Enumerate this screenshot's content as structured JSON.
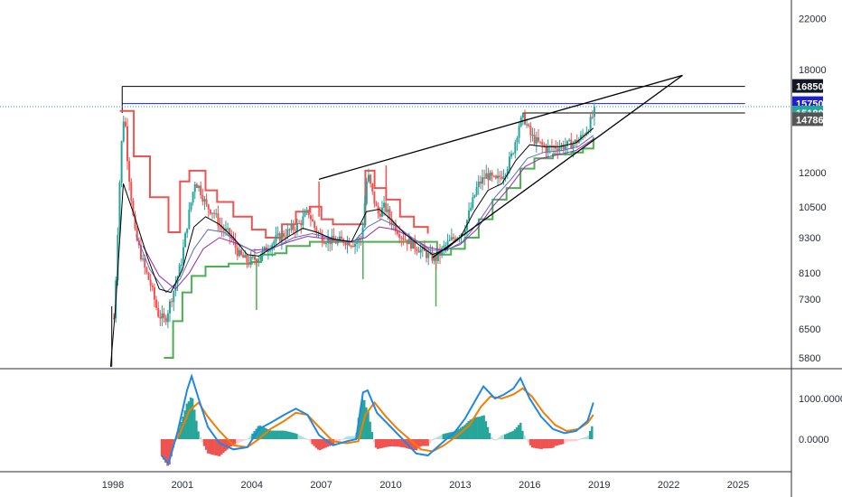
{
  "colors": {
    "candle_up": "#26a69a",
    "candle_down": "#ef5350",
    "ema_fast": "#000000",
    "ema_slow": "#9c27b0",
    "ema_mid": "#5c6bc0",
    "stop_upper": "#ef5350",
    "stop_lower": "#4caf50",
    "trend_line": "#000000",
    "level_black": "#000000",
    "level_blue": "#1f1fd1",
    "last_price_line": "#26a69a",
    "macd_line": "#1e88e5",
    "signal_line": "#f57c00",
    "hist_pos_strong": "#26a69a",
    "hist_pos_weak": "#b2dfdb",
    "hist_neg_strong": "#ef5350",
    "hist_neg_weak": "#ffcdd2"
  },
  "chart_data": [
    {
      "type": "candlestick",
      "title": "",
      "scale": "log",
      "y_ticks": [
        22000,
        18000,
        12000,
        10500,
        9300,
        8100,
        7300,
        6500,
        5800
      ],
      "x_ticks": [
        "1998",
        "2001",
        "2004",
        "2007",
        "2010",
        "2013",
        "2016",
        "2019",
        "2022",
        "2025"
      ],
      "price_labels": [
        {
          "label": "16850",
          "value": 16850,
          "bg": "#131722"
        },
        {
          "label": "15750",
          "value": 15750,
          "bg": "#1f1fd1"
        },
        {
          "label": "15180",
          "value": 15180,
          "bg": "#26a69a"
        },
        {
          "label": "14786",
          "value": 14786,
          "bg": "#555555"
        }
      ],
      "horizontal_levels": [
        {
          "value": 16850,
          "from": 1998.4,
          "to": 2025.3,
          "color": "level_black"
        },
        {
          "value": 15750,
          "from": 1998.4,
          "to": 2025.3,
          "color": "level_blue"
        },
        {
          "value": 15180,
          "from": 2015.7,
          "to": 2025.3,
          "color": "level_black"
        }
      ],
      "trend_lines": [
        {
          "from": [
            2006.9,
            11700
          ],
          "to": [
            2022.6,
            17600
          ]
        },
        {
          "from": [
            2011.8,
            8600
          ],
          "to": [
            2022.6,
            17600
          ]
        }
      ],
      "price_path": [
        [
          1997.9,
          5600
        ],
        [
          1998.1,
          8200
        ],
        [
          1998.3,
          13000
        ],
        [
          1998.45,
          15400
        ],
        [
          1998.6,
          12500
        ],
        [
          1998.9,
          9500
        ],
        [
          1999.3,
          8300
        ],
        [
          1999.6,
          7700
        ],
        [
          1999.9,
          6900
        ],
        [
          2000.2,
          6700
        ],
        [
          2000.6,
          7600
        ],
        [
          2000.9,
          8400
        ],
        [
          2001.2,
          10000
        ],
        [
          2001.5,
          11600
        ],
        [
          2001.7,
          11300
        ],
        [
          2002.0,
          10500
        ],
        [
          2002.3,
          10300
        ],
        [
          2002.6,
          9700
        ],
        [
          2003.0,
          9400
        ],
        [
          2003.4,
          8700
        ],
        [
          2003.8,
          8450
        ],
        [
          2004.2,
          8600
        ],
        [
          2004.6,
          8900
        ],
        [
          2005.0,
          9250
        ],
        [
          2005.5,
          9500
        ],
        [
          2006.0,
          9800
        ],
        [
          2006.4,
          10300
        ],
        [
          2006.7,
          9600
        ],
        [
          2007.0,
          9300
        ],
        [
          2007.5,
          9150
        ],
        [
          2008.0,
          9200
        ],
        [
          2008.4,
          9100
        ],
        [
          2008.7,
          9300
        ],
        [
          2008.95,
          12000
        ],
        [
          2009.2,
          10900
        ],
        [
          2009.4,
          10200
        ],
        [
          2009.7,
          10500
        ],
        [
          2010.0,
          9900
        ],
        [
          2010.4,
          9400
        ],
        [
          2010.8,
          9100
        ],
        [
          2011.2,
          8900
        ],
        [
          2011.6,
          8650
        ],
        [
          2011.9,
          8550
        ],
        [
          2012.3,
          9000
        ],
        [
          2012.7,
          9300
        ],
        [
          2013.1,
          9550
        ],
        [
          2013.4,
          10400
        ],
        [
          2013.7,
          11400
        ],
        [
          2014.1,
          11900
        ],
        [
          2014.5,
          11600
        ],
        [
          2014.9,
          12100
        ],
        [
          2015.2,
          12900
        ],
        [
          2015.5,
          14500
        ],
        [
          2015.7,
          14950
        ],
        [
          2016.0,
          13900
        ],
        [
          2016.3,
          13500
        ],
        [
          2016.7,
          13200
        ],
        [
          2017.1,
          13300
        ],
        [
          2017.5,
          13350
        ],
        [
          2017.9,
          13500
        ],
        [
          2018.2,
          13800
        ],
        [
          2018.5,
          14400
        ],
        [
          2018.75,
          15250
        ]
      ],
      "ema_fast_path": [
        [
          1997.9,
          5600
        ],
        [
          1998.1,
          7000
        ],
        [
          1998.45,
          11500
        ],
        [
          1998.9,
          10200
        ],
        [
          1999.5,
          8600
        ],
        [
          2000.0,
          7600
        ],
        [
          2000.5,
          7500
        ],
        [
          2001.0,
          8200
        ],
        [
          2001.5,
          9700
        ],
        [
          2002.0,
          10100
        ],
        [
          2002.6,
          9800
        ],
        [
          2003.2,
          9300
        ],
        [
          2003.8,
          8700
        ],
        [
          2004.3,
          8650
        ],
        [
          2005.0,
          9000
        ],
        [
          2005.6,
          9350
        ],
        [
          2006.2,
          9650
        ],
        [
          2006.8,
          9500
        ],
        [
          2007.5,
          9250
        ],
        [
          2008.3,
          9150
        ],
        [
          2008.95,
          10300
        ],
        [
          2009.5,
          10400
        ],
        [
          2010.0,
          10000
        ],
        [
          2010.6,
          9450
        ],
        [
          2011.2,
          9050
        ],
        [
          2011.8,
          8700
        ],
        [
          2012.4,
          8900
        ],
        [
          2013.0,
          9300
        ],
        [
          2013.6,
          10300
        ],
        [
          2014.2,
          11200
        ],
        [
          2014.8,
          11500
        ],
        [
          2015.4,
          12600
        ],
        [
          2016.0,
          13400
        ],
        [
          2016.6,
          13300
        ],
        [
          2017.3,
          13300
        ],
        [
          2018.0,
          13500
        ],
        [
          2018.75,
          14300
        ]
      ],
      "ema_mid_path": [
        [
          1999.0,
          9400
        ],
        [
          1999.6,
          8200
        ],
        [
          2000.3,
          7500
        ],
        [
          2000.9,
          7900
        ],
        [
          2001.5,
          8900
        ],
        [
          2002.1,
          9600
        ],
        [
          2002.8,
          9500
        ],
        [
          2003.5,
          9050
        ],
        [
          2004.2,
          8750
        ],
        [
          2005.0,
          8950
        ],
        [
          2005.8,
          9300
        ],
        [
          2006.6,
          9450
        ],
        [
          2007.5,
          9250
        ],
        [
          2008.4,
          9150
        ],
        [
          2009.0,
          9700
        ],
        [
          2009.6,
          10000
        ],
        [
          2010.3,
          9700
        ],
        [
          2011.0,
          9250
        ],
        [
          2011.7,
          8850
        ],
        [
          2012.4,
          8850
        ],
        [
          2013.1,
          9150
        ],
        [
          2013.8,
          9900
        ],
        [
          2014.5,
          10900
        ],
        [
          2015.2,
          11700
        ],
        [
          2015.9,
          12700
        ],
        [
          2016.6,
          13000
        ],
        [
          2017.4,
          13100
        ],
        [
          2018.1,
          13300
        ],
        [
          2018.75,
          13900
        ]
      ],
      "ema_slow_path": [
        [
          1999.3,
          9000
        ],
        [
          2000.0,
          8000
        ],
        [
          2000.7,
          7600
        ],
        [
          2001.3,
          8100
        ],
        [
          2001.9,
          8900
        ],
        [
          2002.6,
          9300
        ],
        [
          2003.3,
          9100
        ],
        [
          2004.0,
          8850
        ],
        [
          2004.8,
          8900
        ],
        [
          2005.6,
          9150
        ],
        [
          2006.4,
          9350
        ],
        [
          2007.3,
          9250
        ],
        [
          2008.2,
          9150
        ],
        [
          2008.9,
          9300
        ],
        [
          2009.5,
          9700
        ],
        [
          2010.2,
          9600
        ],
        [
          2010.9,
          9300
        ],
        [
          2011.6,
          8950
        ],
        [
          2012.3,
          8850
        ],
        [
          2013.0,
          9050
        ],
        [
          2013.7,
          9600
        ],
        [
          2014.4,
          10500
        ],
        [
          2015.1,
          11300
        ],
        [
          2015.8,
          12300
        ],
        [
          2016.5,
          12700
        ],
        [
          2017.3,
          12900
        ],
        [
          2018.0,
          13100
        ],
        [
          2018.75,
          13700
        ]
      ],
      "stop_upper_steps": [
        [
          1998.3,
          15300
        ],
        [
          1998.9,
          12800
        ],
        [
          1999.6,
          10900
        ],
        [
          2000.4,
          9500
        ],
        [
          2000.9,
          11600
        ],
        [
          2001.3,
          12100
        ],
        [
          2002.0,
          11200
        ],
        [
          2002.5,
          10700
        ],
        [
          2003.2,
          10100
        ],
        [
          2004.0,
          9600
        ],
        [
          2004.6,
          9300
        ],
        [
          2005.3,
          9800
        ],
        [
          2005.9,
          10300
        ],
        [
          2006.5,
          10500
        ],
        [
          2007.0,
          10000
        ],
        [
          2007.5,
          9800
        ],
        [
          2008.9,
          12100
        ],
        [
          2009.3,
          11300
        ],
        [
          2009.8,
          10800
        ],
        [
          2010.4,
          10100
        ],
        [
          2011.0,
          9700
        ],
        [
          2011.6,
          9450
        ]
      ],
      "stop_lower_steps": [
        [
          2000.2,
          5800
        ],
        [
          2000.6,
          6700
        ],
        [
          2001.0,
          7500
        ],
        [
          2001.4,
          8000
        ],
        [
          2002.0,
          8300
        ],
        [
          2003.0,
          8400
        ],
        [
          2004.0,
          8450
        ],
        [
          2004.4,
          8700
        ],
        [
          2005.0,
          8750
        ],
        [
          2005.5,
          9000
        ],
        [
          2006.0,
          9000
        ],
        [
          2006.5,
          9150
        ],
        [
          2008.0,
          9150
        ],
        [
          2009.0,
          9150
        ],
        [
          2010.0,
          9150
        ],
        [
          2011.0,
          9150
        ],
        [
          2012.0,
          8700
        ],
        [
          2012.6,
          8900
        ],
        [
          2013.2,
          9300
        ],
        [
          2013.8,
          10000
        ],
        [
          2014.4,
          10800
        ],
        [
          2015.0,
          11300
        ],
        [
          2015.6,
          12200
        ],
        [
          2016.2,
          12700
        ],
        [
          2017.0,
          12900
        ],
        [
          2017.8,
          13000
        ],
        [
          2018.3,
          13200
        ],
        [
          2018.75,
          13800
        ]
      ],
      "stop_spikes": [
        {
          "x": 2004.2,
          "low": 7000,
          "color": "stop_lower"
        },
        {
          "x": 2008.8,
          "low": 7900,
          "color": "stop_lower"
        },
        {
          "x": 2011.95,
          "low": 7100,
          "color": "stop_lower"
        },
        {
          "x": 2006.9,
          "high": 11600,
          "color": "stop_upper"
        },
        {
          "x": 2009.8,
          "high": 12350,
          "color": "stop_upper"
        }
      ]
    },
    {
      "type": "macd",
      "y_ticks": [
        {
          "label": "1000.0000",
          "value": 1000
        },
        {
          "label": "0.0000",
          "value": 0
        }
      ],
      "macd_path": [
        [
          2000.1,
          -400
        ],
        [
          2000.4,
          -600
        ],
        [
          2000.8,
          200
        ],
        [
          2001.2,
          1200
        ],
        [
          2001.4,
          1550
        ],
        [
          2001.7,
          1000
        ],
        [
          2002.1,
          300
        ],
        [
          2002.6,
          -100
        ],
        [
          2003.2,
          -250
        ],
        [
          2003.8,
          -200
        ],
        [
          2004.3,
          250
        ],
        [
          2004.8,
          400
        ],
        [
          2005.4,
          600
        ],
        [
          2005.9,
          750
        ],
        [
          2006.4,
          600
        ],
        [
          2006.9,
          100
        ],
        [
          2007.5,
          -150
        ],
        [
          2008.1,
          -50
        ],
        [
          2008.5,
          0
        ],
        [
          2008.8,
          1150
        ],
        [
          2009.0,
          1200
        ],
        [
          2009.4,
          650
        ],
        [
          2010.0,
          300
        ],
        [
          2010.6,
          -50
        ],
        [
          2011.1,
          -350
        ],
        [
          2011.6,
          -400
        ],
        [
          2012.2,
          -100
        ],
        [
          2012.8,
          200
        ],
        [
          2013.2,
          500
        ],
        [
          2013.7,
          1000
        ],
        [
          2014.0,
          1300
        ],
        [
          2014.5,
          1000
        ],
        [
          2014.9,
          1100
        ],
        [
          2015.3,
          1250
        ],
        [
          2015.6,
          1500
        ],
        [
          2016.0,
          1000
        ],
        [
          2016.5,
          550
        ],
        [
          2017.0,
          250
        ],
        [
          2017.5,
          150
        ],
        [
          2018.0,
          200
        ],
        [
          2018.5,
          450
        ],
        [
          2018.75,
          900
        ]
      ],
      "signal_path": [
        [
          2000.6,
          -100
        ],
        [
          2000.9,
          150
        ],
        [
          2001.3,
          700
        ],
        [
          2001.7,
          900
        ],
        [
          2002.1,
          550
        ],
        [
          2002.6,
          200
        ],
        [
          2003.2,
          -150
        ],
        [
          2003.8,
          -200
        ],
        [
          2004.3,
          0
        ],
        [
          2004.8,
          250
        ],
        [
          2005.4,
          450
        ],
        [
          2005.9,
          650
        ],
        [
          2006.4,
          600
        ],
        [
          2006.9,
          300
        ],
        [
          2007.5,
          -50
        ],
        [
          2008.1,
          -100
        ],
        [
          2008.6,
          -50
        ],
        [
          2008.9,
          600
        ],
        [
          2009.3,
          900
        ],
        [
          2009.8,
          550
        ],
        [
          2010.3,
          250
        ],
        [
          2010.8,
          0
        ],
        [
          2011.3,
          -250
        ],
        [
          2011.8,
          -300
        ],
        [
          2012.3,
          -150
        ],
        [
          2012.9,
          100
        ],
        [
          2013.4,
          350
        ],
        [
          2013.9,
          800
        ],
        [
          2014.3,
          1050
        ],
        [
          2014.8,
          1000
        ],
        [
          2015.3,
          1100
        ],
        [
          2015.7,
          1250
        ],
        [
          2016.1,
          1050
        ],
        [
          2016.6,
          650
        ],
        [
          2017.1,
          350
        ],
        [
          2017.6,
          200
        ],
        [
          2018.1,
          250
        ],
        [
          2018.5,
          400
        ],
        [
          2018.75,
          600
        ]
      ]
    }
  ]
}
